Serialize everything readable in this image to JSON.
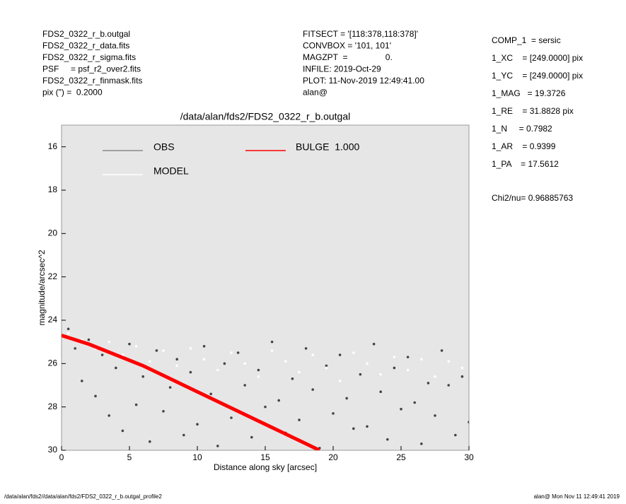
{
  "header": {
    "left": [
      "FDS2_0322_r_b.outgal",
      "FDS2_0322_r_data.fits",
      "FDS2_0322_r_sigma.fits",
      "PSF     = psf_r2_over2.fits",
      "FDS2_0322_r_finmask.fits",
      "pix (\") =  0.2000"
    ],
    "middle": [
      "FITSECT = '[118:378,118:378]'",
      "CONVBOX = '101, 101'",
      "MAGZPT  =                0.",
      "INFILE: 2019-Oct-29",
      "PLOT: 11-Nov-2019 12:49:41.00",
      "alan@"
    ],
    "right": [
      "COMP_1  = sersic",
      "1_XC    = [249.0000] pix",
      "1_YC    = [249.0000] pix",
      "1_MAG   = 19.3726",
      "1_RE    = 31.8828 pix",
      "1_N     = 0.7982",
      "1_AR    = 0.9399",
      "1_PA    = 17.5612"
    ],
    "chi2": "Chi2/nu=      0.96885763"
  },
  "footer": {
    "left": "/data/alan/fds2//data/alan/fds2/FDS2_0322_r_b.outgal_profile2",
    "right": "alan@  Mon Nov 11 12:49:41 2019"
  },
  "chart_data": {
    "type": "scatter",
    "title": "/data/alan/fds2/FDS2_0322_r_b.outgal",
    "x_label": "Distance along sky [arcsec]",
    "y_label": "magnitude/arcsec^2",
    "xlim": [
      0,
      30
    ],
    "ylim": [
      30,
      15
    ],
    "xticks": [
      0,
      5,
      10,
      15,
      20,
      25,
      30
    ],
    "yticks": [
      16,
      18,
      20,
      22,
      24,
      26,
      28,
      30
    ],
    "series": [
      {
        "name": "OBS",
        "color": "#444444",
        "legend_color": "#888888",
        "marker": "point",
        "x": [
          0.5,
          1,
          1.5,
          2,
          2.5,
          3,
          3.5,
          4,
          4.5,
          5,
          5.5,
          6,
          6.5,
          7,
          7.5,
          8,
          8.5,
          9,
          9.5,
          10,
          10.5,
          11,
          11.5,
          12,
          12.5,
          13,
          13.5,
          14,
          14.5,
          15,
          15.5,
          16,
          16.5,
          17,
          17.5,
          18,
          18.5,
          19,
          19.5,
          20,
          20.5,
          21,
          21.5,
          22,
          22.5,
          23,
          23.5,
          24,
          24.5,
          25,
          25.5,
          26,
          26.5,
          27,
          27.5,
          28,
          28.5,
          29,
          29.5,
          30
        ],
        "values": [
          24.4,
          25.3,
          26.8,
          24.9,
          27.5,
          25.6,
          28.4,
          26.2,
          29.1,
          25.1,
          27.9,
          26.6,
          29.6,
          25.4,
          28.2,
          27.1,
          25.8,
          29.3,
          26.4,
          28.8,
          25.2,
          27.4,
          29.8,
          26,
          28.5,
          25.5,
          27,
          29.4,
          26.3,
          28,
          25,
          27.7,
          29.2,
          26.7,
          28.6,
          25.3,
          27.2,
          29.9,
          26.1,
          28.3,
          25.6,
          27.6,
          29,
          26.5,
          28.9,
          25.1,
          27.3,
          29.5,
          26.2,
          28.1,
          25.7,
          27.8,
          29.7,
          26.9,
          28.4,
          25.4,
          27,
          29.3,
          26.6,
          28.7
        ]
      },
      {
        "name": "MODEL",
        "color": "#ffffff",
        "legend_color": "#ffffff",
        "marker": "point",
        "x": [
          0.5,
          1.5,
          2.5,
          3.5,
          4.5,
          5.5,
          6.5,
          7.5,
          8.5,
          9.5,
          10.5,
          11.5,
          12.5,
          13.5,
          14.5,
          15.5,
          16.5,
          17.5,
          18.5,
          19.5,
          20.5,
          21.5,
          22.5,
          23.5,
          24.5,
          25.5,
          26.5,
          27.5,
          28.5,
          29.5
        ],
        "values": [
          24.6,
          24.9,
          25.3,
          25,
          25.6,
          25.2,
          25.9,
          25.4,
          26.1,
          25.3,
          25.8,
          26.3,
          25.5,
          26,
          26.6,
          25.4,
          25.9,
          26.4,
          25.6,
          26.2,
          26.8,
          25.5,
          26,
          26.5,
          25.7,
          26.3,
          25.8,
          26.6,
          25.9,
          26.2
        ]
      },
      {
        "name": "BULGE  1.000",
        "color": "#ff0000",
        "legend_color": "#ff0000",
        "marker": "line",
        "x": [
          0,
          2,
          4,
          6,
          8,
          10,
          12,
          14,
          16,
          18,
          19
        ],
        "values": [
          24.7,
          25.1,
          25.6,
          26.1,
          26.7,
          27.3,
          27.9,
          28.5,
          29.1,
          29.7,
          30
        ]
      }
    ]
  }
}
